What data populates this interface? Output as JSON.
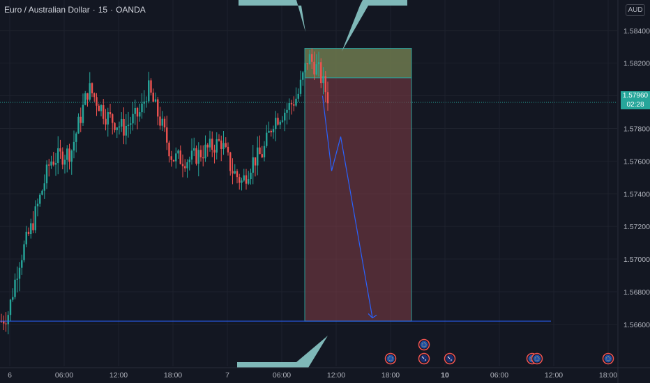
{
  "header": {
    "symbol": "Euro / Australian Dollar",
    "sep": "·",
    "interval": "15",
    "exchange": "OANDA"
  },
  "price_scale": {
    "currency": "AUD",
    "current_price": "1.57960",
    "countdown": "02:28"
  },
  "colors": {
    "background": "#131722",
    "up": "#26a69a",
    "down": "#ef5350",
    "target_zone": "#7a3a45",
    "stop_zone": "#6f7a4f",
    "line": "#2962ff",
    "callout": "#7fb8b8"
  },
  "chart_data": {
    "type": "candlestick",
    "title": "",
    "ylim": [
      1.5648,
      1.5848
    ],
    "y_ticks": [
      "1.58400",
      "1.58200",
      "1.58000",
      "1.57800",
      "1.57600",
      "1.57400",
      "1.57200",
      "1.57000",
      "1.56800",
      "1.56600"
    ],
    "x_ticks": [
      "6",
      "06:00",
      "12:00",
      "18:00",
      "7",
      "06:00",
      "12:00",
      "18:00",
      "10",
      "06:00",
      "12:00",
      "18:00"
    ],
    "bold_x_ticks": [
      "10"
    ],
    "close_path_keypoints": [
      {
        "t": 0,
        "p": 1.5662
      },
      {
        "t": 10,
        "p": 1.5667
      },
      {
        "t": 25,
        "p": 1.5698
      },
      {
        "t": 45,
        "p": 1.5722
      },
      {
        "t": 70,
        "p": 1.576
      },
      {
        "t": 100,
        "p": 1.5766
      },
      {
        "t": 125,
        "p": 1.5805
      },
      {
        "t": 150,
        "p": 1.5788
      },
      {
        "t": 175,
        "p": 1.578
      },
      {
        "t": 200,
        "p": 1.579
      },
      {
        "t": 210,
        "p": 1.5805
      },
      {
        "t": 230,
        "p": 1.5782
      },
      {
        "t": 245,
        "p": 1.5762
      },
      {
        "t": 270,
        "p": 1.5761
      },
      {
        "t": 290,
        "p": 1.5766
      },
      {
        "t": 315,
        "p": 1.5772
      },
      {
        "t": 330,
        "p": 1.5755
      },
      {
        "t": 345,
        "p": 1.5747
      },
      {
        "t": 360,
        "p": 1.576
      },
      {
        "t": 375,
        "p": 1.5765
      },
      {
        "t": 390,
        "p": 1.5785
      },
      {
        "t": 410,
        "p": 1.5792
      },
      {
        "t": 425,
        "p": 1.58
      },
      {
        "t": 440,
        "p": 1.5824
      },
      {
        "t": 455,
        "p": 1.5815
      },
      {
        "t": 470,
        "p": 1.5797
      }
    ],
    "position": {
      "side": "short",
      "entry": 1.5811,
      "stop_loss": 1.5829,
      "take_profit": 1.5662
    },
    "forecast_path": [
      {
        "time": "7 10:30",
        "price": 1.58
      },
      {
        "time": "7 11:30",
        "price": 1.5754
      },
      {
        "time": "7 12:30",
        "price": 1.5775
      },
      {
        "time": "7 16:00",
        "price": 1.5664
      }
    ],
    "horizontal_line": 1.5662,
    "event_markers": [
      {
        "time": "18:00",
        "flag": "EU"
      },
      {
        "time": "20:00",
        "flag": "EU"
      },
      {
        "time": "20:00",
        "flag": "AU"
      },
      {
        "time": "10",
        "flag": "AU"
      },
      {
        "time": "10 08:00",
        "flag": "EU"
      },
      {
        "time": "10 08:15",
        "flag": "EU"
      },
      {
        "time": "18:00",
        "flag": "EU"
      }
    ]
  }
}
